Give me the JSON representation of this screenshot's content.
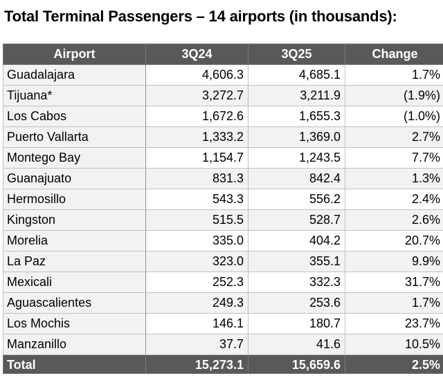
{
  "title": "Total Terminal Passengers – 14 airports (in thousands):",
  "table": {
    "headers": {
      "airport": "Airport",
      "q24": "3Q24",
      "q25": "3Q25",
      "change": "Change"
    },
    "rows": [
      {
        "airport": "Guadalajara",
        "q24": "4,606.3",
        "q25": "4,685.1",
        "change": "1.7%"
      },
      {
        "airport": "Tijuana*",
        "q24": "3,272.7",
        "q25": "3,211.9",
        "change": "(1.9%)"
      },
      {
        "airport": "Los Cabos",
        "q24": "1,672.6",
        "q25": "1,655.3",
        "change": "(1.0%)"
      },
      {
        "airport": "Puerto Vallarta",
        "q24": "1,333.2",
        "q25": "1,369.0",
        "change": "2.7%"
      },
      {
        "airport": "Montego Bay",
        "q24": "1,154.7",
        "q25": "1,243.5",
        "change": "7.7%"
      },
      {
        "airport": "Guanajuato",
        "q24": "831.3",
        "q25": "842.4",
        "change": "1.3%"
      },
      {
        "airport": "Hermosillo",
        "q24": "543.3",
        "q25": "556.2",
        "change": "2.4%"
      },
      {
        "airport": "Kingston",
        "q24": "515.5",
        "q25": "528.7",
        "change": "2.6%"
      },
      {
        "airport": "Morelia",
        "q24": "335.0",
        "q25": "404.2",
        "change": "20.7%"
      },
      {
        "airport": "La Paz",
        "q24": "323.0",
        "q25": "355.1",
        "change": "9.9%"
      },
      {
        "airport": "Mexicali",
        "q24": "252.3",
        "q25": "332.3",
        "change": "31.7%"
      },
      {
        "airport": "Aguascalientes",
        "q24": "249.3",
        "q25": "253.6",
        "change": "1.7%"
      },
      {
        "airport": "Los Mochis",
        "q24": "146.1",
        "q25": "180.7",
        "change": "23.7%"
      },
      {
        "airport": "Manzanillo",
        "q24": "37.7",
        "q25": "41.6",
        "change": "10.5%"
      }
    ],
    "total": {
      "airport": "Total",
      "q24": "15,273.1",
      "q25": "15,659.6",
      "change": "2.5%"
    }
  },
  "colors": {
    "header_bg": "#595959",
    "header_text": "#ffffff",
    "stripe": "#f2f2f2",
    "grid": "#bfbfbf"
  }
}
